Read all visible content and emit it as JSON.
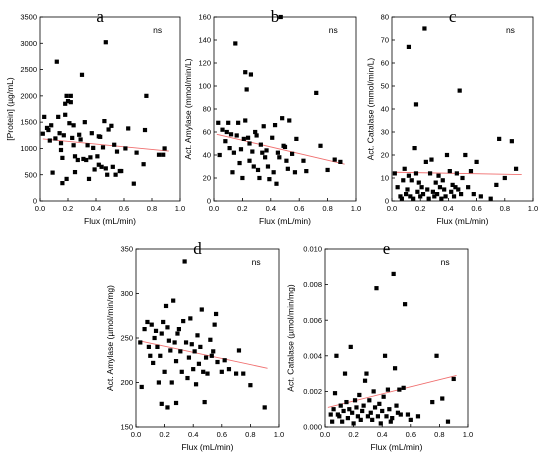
{
  "chart_data": [
    {
      "type": "scatter",
      "panel_letter": "a",
      "annotation": "ns",
      "xlabel": "Flux (mL/min)",
      "ylabel": "[Protein] (µg/mL)",
      "xlim": [
        0.0,
        1.0
      ],
      "ylim": [
        0,
        3500
      ],
      "xticks": [
        "0.0",
        "0.2",
        "0.4",
        "0.6",
        "0.8",
        "1.0"
      ],
      "yticks": [
        "0",
        "500",
        "1000",
        "1500",
        "2000",
        "2500",
        "3000",
        "3500"
      ],
      "trendline": {
        "x": [
          0.02,
          0.92
        ],
        "y": [
          1180,
          950
        ],
        "color": "#f07070"
      },
      "points": [
        [
          0.02,
          1280
        ],
        [
          0.03,
          1600
        ],
        [
          0.05,
          1390
        ],
        [
          0.06,
          1350
        ],
        [
          0.07,
          1150
        ],
        [
          0.08,
          1440
        ],
        [
          0.09,
          540
        ],
        [
          0.11,
          1190
        ],
        [
          0.12,
          2650
        ],
        [
          0.13,
          1600
        ],
        [
          0.14,
          1290
        ],
        [
          0.15,
          1100
        ],
        [
          0.15,
          970
        ],
        [
          0.16,
          820
        ],
        [
          0.16,
          340
        ],
        [
          0.17,
          1250
        ],
        [
          0.18,
          1850
        ],
        [
          0.18,
          1640
        ],
        [
          0.19,
          2000
        ],
        [
          0.19,
          420
        ],
        [
          0.2,
          1900
        ],
        [
          0.21,
          1480
        ],
        [
          0.22,
          1880
        ],
        [
          0.22,
          2000
        ],
        [
          0.23,
          1200
        ],
        [
          0.24,
          1440
        ],
        [
          0.24,
          1060
        ],
        [
          0.25,
          850
        ],
        [
          0.25,
          550
        ],
        [
          0.27,
          780
        ],
        [
          0.28,
          1260
        ],
        [
          0.29,
          1170
        ],
        [
          0.3,
          2400
        ],
        [
          0.31,
          800
        ],
        [
          0.32,
          1500
        ],
        [
          0.33,
          780
        ],
        [
          0.34,
          1060
        ],
        [
          0.35,
          420
        ],
        [
          0.36,
          830
        ],
        [
          0.37,
          1290
        ],
        [
          0.38,
          1010
        ],
        [
          0.39,
          600
        ],
        [
          0.41,
          850
        ],
        [
          0.42,
          1230
        ],
        [
          0.42,
          690
        ],
        [
          0.43,
          1220
        ],
        [
          0.44,
          650
        ],
        [
          0.45,
          1020
        ],
        [
          0.46,
          1520
        ],
        [
          0.47,
          3020
        ],
        [
          0.47,
          620
        ],
        [
          0.48,
          500
        ],
        [
          0.49,
          1360
        ],
        [
          0.51,
          1430
        ],
        [
          0.52,
          650
        ],
        [
          0.53,
          1070
        ],
        [
          0.54,
          500
        ],
        [
          0.55,
          940
        ],
        [
          0.57,
          570
        ],
        [
          0.58,
          570
        ],
        [
          0.61,
          1000
        ],
        [
          0.63,
          1380
        ],
        [
          0.67,
          330
        ],
        [
          0.69,
          920
        ],
        [
          0.74,
          700
        ],
        [
          0.75,
          1350
        ],
        [
          0.76,
          2000
        ],
        [
          0.85,
          880
        ],
        [
          0.88,
          880
        ],
        [
          0.89,
          1000
        ]
      ]
    },
    {
      "type": "scatter",
      "panel_letter": "b",
      "annotation": "ns",
      "xlabel": "Flux (mL/min)",
      "ylabel": "Act. Amylase (mmol/min/L)",
      "xlim": [
        0.0,
        1.0
      ],
      "ylim": [
        0,
        160
      ],
      "xticks": [
        "0.0",
        "0.2",
        "0.4",
        "0.6",
        "0.8",
        "1.0"
      ],
      "yticks": [
        "0",
        "20",
        "40",
        "60",
        "80",
        "100",
        "120",
        "140",
        "160"
      ],
      "trendline": {
        "x": [
          0.02,
          0.92
        ],
        "y": [
          58,
          32
        ],
        "color": "#f07070"
      },
      "points": [
        [
          0.03,
          68
        ],
        [
          0.04,
          40
        ],
        [
          0.06,
          62
        ],
        [
          0.08,
          52
        ],
        [
          0.09,
          60
        ],
        [
          0.1,
          68
        ],
        [
          0.11,
          46
        ],
        [
          0.12,
          58
        ],
        [
          0.13,
          25
        ],
        [
          0.14,
          42
        ],
        [
          0.15,
          137
        ],
        [
          0.16,
          57
        ],
        [
          0.17,
          68
        ],
        [
          0.18,
          33
        ],
        [
          0.19,
          45
        ],
        [
          0.2,
          20
        ],
        [
          0.21,
          54
        ],
        [
          0.22,
          112
        ],
        [
          0.22,
          70
        ],
        [
          0.23,
          97
        ],
        [
          0.24,
          55
        ],
        [
          0.25,
          50
        ],
        [
          0.25,
          35
        ],
        [
          0.26,
          110
        ],
        [
          0.27,
          43
        ],
        [
          0.28,
          30
        ],
        [
          0.29,
          60
        ],
        [
          0.3,
          57
        ],
        [
          0.31,
          27
        ],
        [
          0.32,
          20
        ],
        [
          0.33,
          49
        ],
        [
          0.34,
          42
        ],
        [
          0.35,
          65
        ],
        [
          0.36,
          38
        ],
        [
          0.37,
          44
        ],
        [
          0.38,
          30
        ],
        [
          0.39,
          19
        ],
        [
          0.41,
          55
        ],
        [
          0.42,
          25
        ],
        [
          0.43,
          66
        ],
        [
          0.44,
          15
        ],
        [
          0.45,
          42
        ],
        [
          0.46,
          38
        ],
        [
          0.47,
          160
        ],
        [
          0.48,
          72
        ],
        [
          0.49,
          48
        ],
        [
          0.5,
          47
        ],
        [
          0.51,
          35
        ],
        [
          0.52,
          28
        ],
        [
          0.53,
          70
        ],
        [
          0.55,
          41
        ],
        [
          0.57,
          25
        ],
        [
          0.58,
          54
        ],
        [
          0.63,
          35
        ],
        [
          0.65,
          26
        ],
        [
          0.72,
          94
        ],
        [
          0.75,
          48
        ],
        [
          0.8,
          27
        ],
        [
          0.85,
          36
        ],
        [
          0.89,
          34
        ]
      ]
    },
    {
      "type": "scatter",
      "panel_letter": "c",
      "annotation": "ns",
      "xlabel": "Flux (mL/min)",
      "ylabel": "Act. Catalase (mmol/min/L)",
      "xlim": [
        0.0,
        1.0
      ],
      "ylim": [
        0,
        80
      ],
      "xticks": [
        "0.0",
        "0.2",
        "0.4",
        "0.6",
        "0.8",
        "1.0"
      ],
      "yticks": [
        "0",
        "10",
        "20",
        "30",
        "40",
        "50",
        "60",
        "70",
        "80"
      ],
      "trendline": {
        "x": [
          0.02,
          0.92
        ],
        "y": [
          12.5,
          11.5
        ],
        "color": "#f07070"
      },
      "points": [
        [
          0.02,
          12
        ],
        [
          0.04,
          6
        ],
        [
          0.06,
          2
        ],
        [
          0.07,
          1
        ],
        [
          0.08,
          9
        ],
        [
          0.09,
          14
        ],
        [
          0.1,
          3
        ],
        [
          0.11,
          5
        ],
        [
          0.12,
          67
        ],
        [
          0.12,
          11
        ],
        [
          0.13,
          2
        ],
        [
          0.14,
          9
        ],
        [
          0.15,
          1
        ],
        [
          0.16,
          23
        ],
        [
          0.17,
          42
        ],
        [
          0.17,
          12
        ],
        [
          0.18,
          4
        ],
        [
          0.19,
          8
        ],
        [
          0.2,
          2
        ],
        [
          0.21,
          6
        ],
        [
          0.22,
          3
        ],
        [
          0.23,
          75
        ],
        [
          0.24,
          17
        ],
        [
          0.25,
          5
        ],
        [
          0.26,
          1
        ],
        [
          0.27,
          12
        ],
        [
          0.28,
          18
        ],
        [
          0.29,
          4
        ],
        [
          0.3,
          2
        ],
        [
          0.31,
          8
        ],
        [
          0.32,
          3
        ],
        [
          0.33,
          11
        ],
        [
          0.34,
          6
        ],
        [
          0.35,
          1
        ],
        [
          0.36,
          9
        ],
        [
          0.37,
          5
        ],
        [
          0.38,
          2
        ],
        [
          0.39,
          20
        ],
        [
          0.41,
          13
        ],
        [
          0.42,
          4
        ],
        [
          0.43,
          7
        ],
        [
          0.44,
          2
        ],
        [
          0.45,
          6
        ],
        [
          0.46,
          12
        ],
        [
          0.47,
          5
        ],
        [
          0.48,
          48
        ],
        [
          0.49,
          3
        ],
        [
          0.5,
          10
        ],
        [
          0.52,
          20
        ],
        [
          0.54,
          6
        ],
        [
          0.56,
          13
        ],
        [
          0.58,
          3
        ],
        [
          0.6,
          17
        ],
        [
          0.63,
          2
        ],
        [
          0.7,
          1
        ],
        [
          0.74,
          7
        ],
        [
          0.76,
          27
        ],
        [
          0.8,
          10
        ],
        [
          0.85,
          26
        ],
        [
          0.88,
          14
        ]
      ]
    },
    {
      "type": "scatter",
      "panel_letter": "d",
      "annotation": "ns",
      "xlabel": "Flux (mL/min)",
      "ylabel": "Act. Amylase (µmol/min/mg)",
      "xlim": [
        0.0,
        1.0
      ],
      "ylim": [
        150,
        350
      ],
      "xticks": [
        "0.0",
        "0.2",
        "0.4",
        "0.6",
        "0.8",
        "1.0"
      ],
      "yticks": [
        "150",
        "200",
        "250",
        "300",
        "350"
      ],
      "trendline": {
        "x": [
          0.02,
          0.92
        ],
        "y": [
          247,
          216
        ],
        "color": "#f07070"
      },
      "points": [
        [
          0.03,
          245
        ],
        [
          0.04,
          195
        ],
        [
          0.06,
          260
        ],
        [
          0.08,
          268
        ],
        [
          0.09,
          240
        ],
        [
          0.1,
          230
        ],
        [
          0.11,
          265
        ],
        [
          0.12,
          222
        ],
        [
          0.13,
          250
        ],
        [
          0.14,
          258
        ],
        [
          0.15,
          240
        ],
        [
          0.16,
          200
        ],
        [
          0.17,
          230
        ],
        [
          0.18,
          255
        ],
        [
          0.18,
          176
        ],
        [
          0.19,
          268
        ],
        [
          0.2,
          212
        ],
        [
          0.21,
          286
        ],
        [
          0.22,
          262
        ],
        [
          0.22,
          172
        ],
        [
          0.23,
          247
        ],
        [
          0.24,
          236
        ],
        [
          0.25,
          200
        ],
        [
          0.26,
          292
        ],
        [
          0.27,
          245
        ],
        [
          0.28,
          224
        ],
        [
          0.28,
          177
        ],
        [
          0.29,
          255
        ],
        [
          0.3,
          260
        ],
        [
          0.31,
          235
        ],
        [
          0.32,
          212
        ],
        [
          0.33,
          269
        ],
        [
          0.34,
          336
        ],
        [
          0.35,
          245
        ],
        [
          0.36,
          205
        ],
        [
          0.37,
          228
        ],
        [
          0.38,
          272
        ],
        [
          0.39,
          243
        ],
        [
          0.4,
          215
        ],
        [
          0.41,
          235
        ],
        [
          0.42,
          198
        ],
        [
          0.43,
          253
        ],
        [
          0.44,
          221
        ],
        [
          0.45,
          240
        ],
        [
          0.46,
          282
        ],
        [
          0.47,
          212
        ],
        [
          0.48,
          178
        ],
        [
          0.49,
          228
        ],
        [
          0.5,
          210
        ],
        [
          0.52,
          248
        ],
        [
          0.53,
          230
        ],
        [
          0.54,
          235
        ],
        [
          0.55,
          265
        ],
        [
          0.56,
          277
        ],
        [
          0.57,
          223
        ],
        [
          0.6,
          212
        ],
        [
          0.62,
          225
        ],
        [
          0.65,
          215
        ],
        [
          0.7,
          210
        ],
        [
          0.72,
          236
        ],
        [
          0.75,
          210
        ],
        [
          0.8,
          197
        ],
        [
          0.9,
          172
        ]
      ]
    },
    {
      "type": "scatter",
      "panel_letter": "e",
      "annotation": "ns",
      "xlabel": "Flux (mL/min)",
      "ylabel": "Act. Catalase (µmol/min/mg)",
      "xlim": [
        0.0,
        1.0
      ],
      "ylim": [
        0.0,
        0.01
      ],
      "xticks": [
        "0.0",
        "0.2",
        "0.4",
        "0.6",
        "0.8",
        "1.0"
      ],
      "yticks": [
        "0.000",
        "0.002",
        "0.004",
        "0.006",
        "0.008",
        "0.010"
      ],
      "trendline": {
        "x": [
          0.02,
          0.92
        ],
        "y": [
          0.0011,
          0.0029
        ],
        "color": "#f07070"
      },
      "points": [
        [
          0.04,
          0.0007
        ],
        [
          0.05,
          0.0003
        ],
        [
          0.06,
          0.001
        ],
        [
          0.07,
          0.0019
        ],
        [
          0.08,
          0.004
        ],
        [
          0.09,
          0.0007
        ],
        [
          0.1,
          0.0006
        ],
        [
          0.11,
          0.0012
        ],
        [
          0.12,
          0.0003
        ],
        [
          0.13,
          0.0009
        ],
        [
          0.14,
          0.003
        ],
        [
          0.15,
          0.0014
        ],
        [
          0.16,
          0.0005
        ],
        [
          0.17,
          0.001
        ],
        [
          0.18,
          0.0045
        ],
        [
          0.19,
          0.0008
        ],
        [
          0.2,
          0.0002
        ],
        [
          0.21,
          0.0015
        ],
        [
          0.22,
          0.0011
        ],
        [
          0.23,
          0.0006
        ],
        [
          0.24,
          0.0018
        ],
        [
          0.25,
          0.0004
        ],
        [
          0.26,
          0.0009
        ],
        [
          0.27,
          0.0012
        ],
        [
          0.28,
          0.0026
        ],
        [
          0.29,
          0.003
        ],
        [
          0.3,
          0.0006
        ],
        [
          0.31,
          0.0015
        ],
        [
          0.32,
          0.0008
        ],
        [
          0.33,
          0.0004
        ],
        [
          0.34,
          0.002
        ],
        [
          0.35,
          0.0011
        ],
        [
          0.36,
          0.0078
        ],
        [
          0.37,
          0.0006
        ],
        [
          0.38,
          0.0013
        ],
        [
          0.39,
          0.0002
        ],
        [
          0.4,
          0.0009
        ],
        [
          0.41,
          0.0017
        ],
        [
          0.42,
          0.004
        ],
        [
          0.43,
          0.0006
        ],
        [
          0.44,
          0.0021
        ],
        [
          0.45,
          0.001
        ],
        [
          0.46,
          0.0003
        ],
        [
          0.47,
          0.0005
        ],
        [
          0.48,
          0.0086
        ],
        [
          0.49,
          0.0033
        ],
        [
          0.5,
          0.0012
        ],
        [
          0.51,
          0.0008
        ],
        [
          0.52,
          0.0021
        ],
        [
          0.53,
          0.0007
        ],
        [
          0.55,
          0.0022
        ],
        [
          0.56,
          0.0069
        ],
        [
          0.58,
          0.0007
        ],
        [
          0.6,
          0.0004
        ],
        [
          0.65,
          0.0006
        ],
        [
          0.75,
          0.0014
        ],
        [
          0.78,
          0.004
        ],
        [
          0.82,
          0.0016
        ],
        [
          0.86,
          0.0003
        ],
        [
          0.9,
          0.0027
        ]
      ]
    }
  ]
}
